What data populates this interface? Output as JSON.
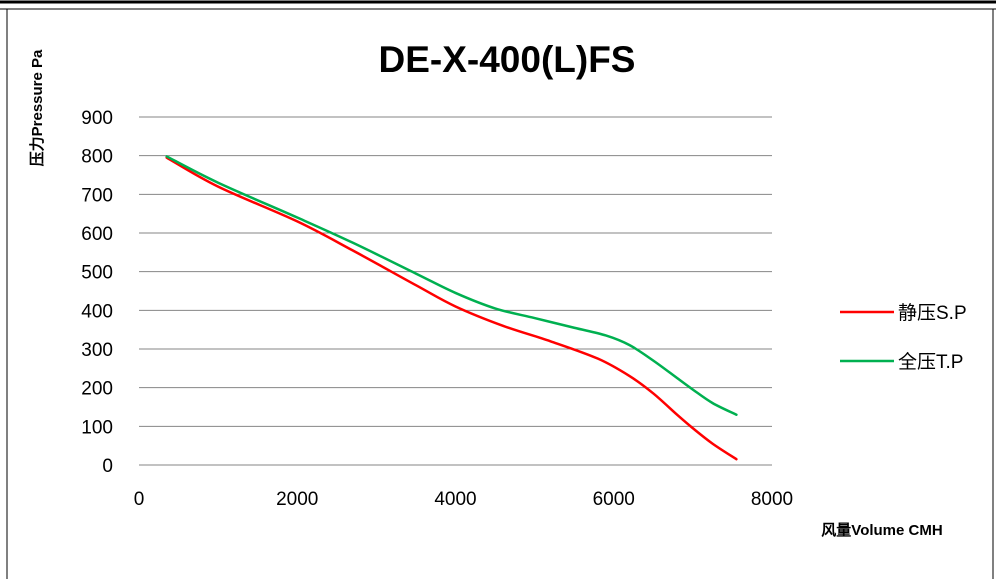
{
  "chart_data": {
    "type": "line",
    "title": "DE-X-400(L)FS",
    "xlabel": "风量Volume CMH",
    "ylabel": "压力Pressure Pa",
    "xlim": [
      0,
      8000
    ],
    "ylim": [
      0,
      900
    ],
    "x_ticks": [
      "0",
      "2000",
      "4000",
      "6000",
      "8000"
    ],
    "y_ticks": [
      "0",
      "100",
      "200",
      "300",
      "400",
      "500",
      "600",
      "700",
      "800",
      "900"
    ],
    "grid": "horizontal",
    "legend_position": "right",
    "series": [
      {
        "name": "静压S.P",
        "color": "#ff0000",
        "points": [
          [
            350,
            795
          ],
          [
            1000,
            720
          ],
          [
            2000,
            630
          ],
          [
            2700,
            555
          ],
          [
            3500,
            465
          ],
          [
            4000,
            410
          ],
          [
            4600,
            360
          ],
          [
            5200,
            320
          ],
          [
            5800,
            275
          ],
          [
            6200,
            230
          ],
          [
            6500,
            185
          ],
          [
            6800,
            130
          ],
          [
            7000,
            95
          ],
          [
            7250,
            55
          ],
          [
            7550,
            15
          ]
        ]
      },
      {
        "name": "全压T.P",
        "color": "#00b050",
        "points": [
          [
            350,
            798
          ],
          [
            1000,
            730
          ],
          [
            2000,
            640
          ],
          [
            2700,
            575
          ],
          [
            3500,
            495
          ],
          [
            4000,
            445
          ],
          [
            4500,
            405
          ],
          [
            5000,
            380
          ],
          [
            5500,
            355
          ],
          [
            5900,
            335
          ],
          [
            6200,
            310
          ],
          [
            6500,
            270
          ],
          [
            6800,
            225
          ],
          [
            7000,
            195
          ],
          [
            7250,
            160
          ],
          [
            7550,
            130
          ]
        ]
      }
    ]
  }
}
